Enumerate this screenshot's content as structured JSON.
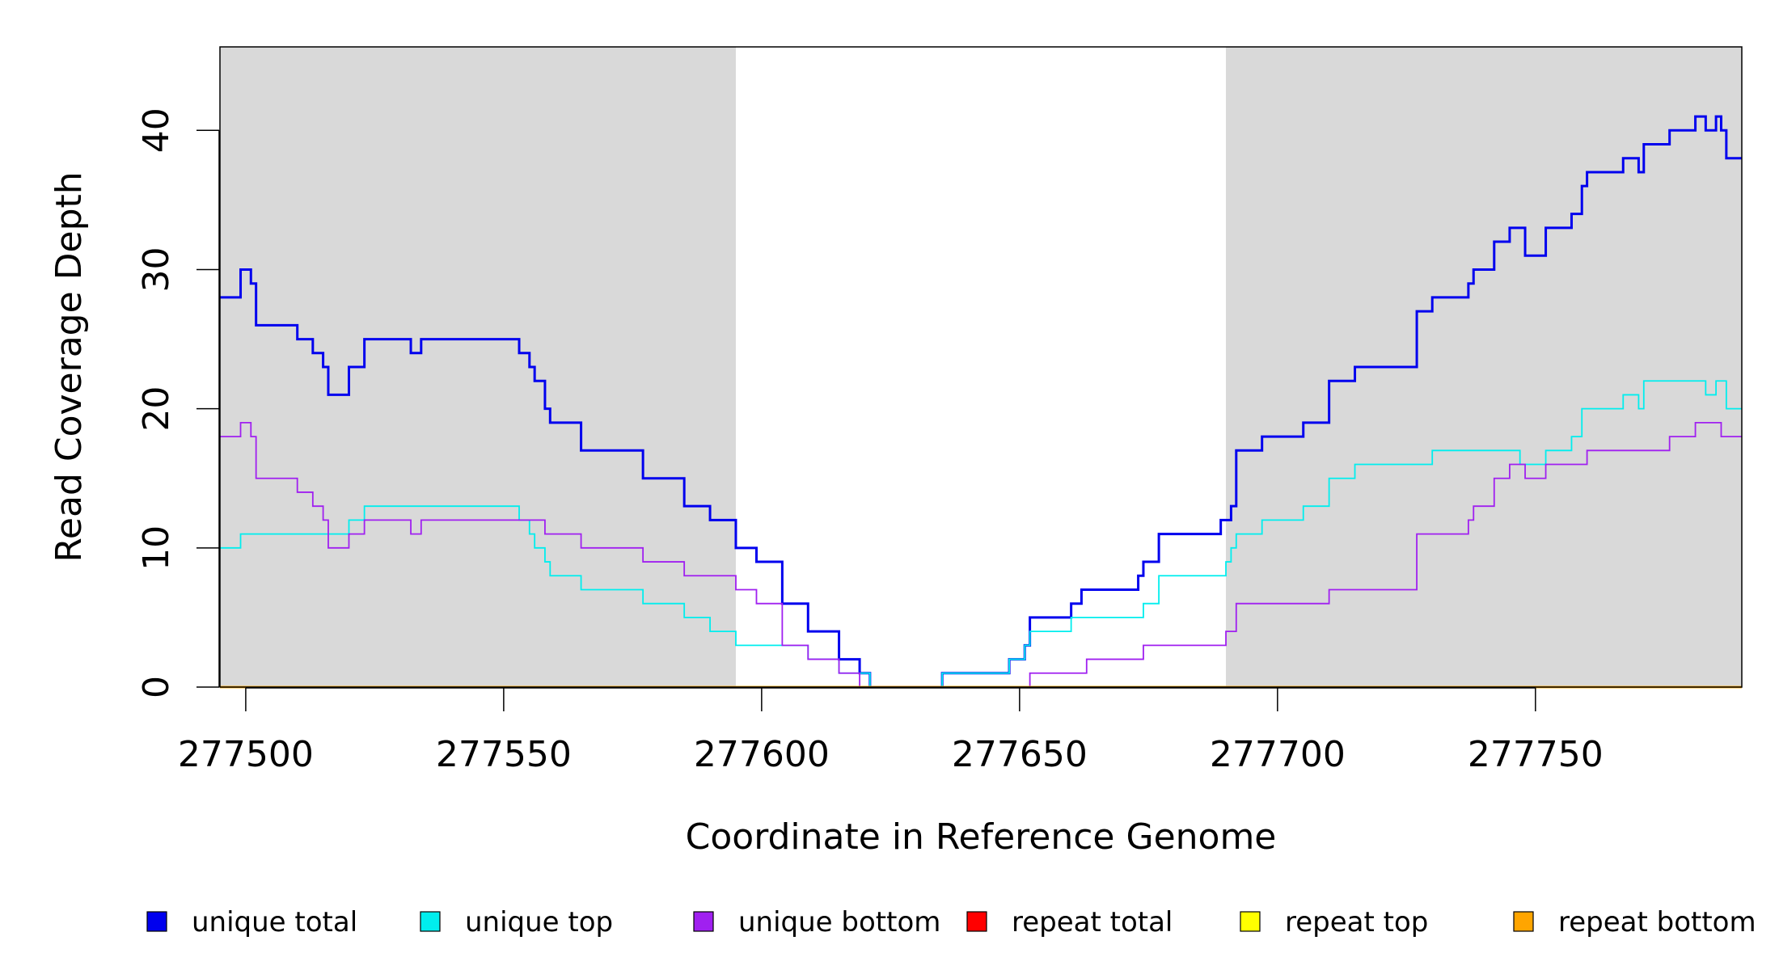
{
  "chart_data": {
    "type": "line",
    "xlabel": "Coordinate in Reference Genome",
    "ylabel": "Read Coverage Depth",
    "xlim": [
      277495,
      277790
    ],
    "ylim": [
      0,
      46
    ],
    "x_ticks": [
      277500,
      277550,
      277600,
      277650,
      277700,
      277750
    ],
    "y_ticks": [
      0,
      10,
      20,
      30,
      40
    ],
    "x_tick_labels": [
      "277500",
      "277550",
      "277600",
      "277650",
      "277700",
      "277750"
    ],
    "y_tick_labels": [
      "0",
      "10",
      "20",
      "30",
      "40"
    ],
    "grid": false,
    "legend_position": "bottom",
    "shaded_regions": [
      {
        "x0": 277495,
        "x1": 277595,
        "color": "#d9d9d9"
      },
      {
        "x0": 277690,
        "x1": 277790,
        "color": "#d9d9d9"
      }
    ],
    "series": [
      {
        "name": "unique total",
        "color": "#0000ee",
        "points": [
          [
            277495,
            28
          ],
          [
            277499,
            30
          ],
          [
            277501,
            29
          ],
          [
            277502,
            26
          ],
          [
            277505,
            26
          ],
          [
            277510,
            25
          ],
          [
            277513,
            24
          ],
          [
            277515,
            23
          ],
          [
            277516,
            21
          ],
          [
            277520,
            23
          ],
          [
            277523,
            25
          ],
          [
            277532,
            24
          ],
          [
            277534,
            25
          ],
          [
            277553,
            24
          ],
          [
            277555,
            23
          ],
          [
            277556,
            22
          ],
          [
            277558,
            20
          ],
          [
            277559,
            19
          ],
          [
            277565,
            17
          ],
          [
            277577,
            15
          ],
          [
            277585,
            13
          ],
          [
            277590,
            12
          ],
          [
            277595,
            10
          ],
          [
            277599,
            9
          ],
          [
            277604,
            6
          ],
          [
            277609,
            4
          ],
          [
            277615,
            2
          ],
          [
            277619,
            1
          ],
          [
            277621,
            0
          ],
          [
            277635,
            1
          ],
          [
            277648,
            2
          ],
          [
            277651,
            3
          ],
          [
            277652,
            5
          ],
          [
            277660,
            6
          ],
          [
            277662,
            7
          ],
          [
            277673,
            8
          ],
          [
            277674,
            9
          ],
          [
            277677,
            11
          ],
          [
            277689,
            12
          ],
          [
            277691,
            13
          ],
          [
            277692,
            17
          ],
          [
            277697,
            18
          ],
          [
            277705,
            19
          ],
          [
            277710,
            22
          ],
          [
            277715,
            23
          ],
          [
            277727,
            27
          ],
          [
            277730,
            28
          ],
          [
            277737,
            29
          ],
          [
            277738,
            30
          ],
          [
            277742,
            32
          ],
          [
            277745,
            33
          ],
          [
            277748,
            31
          ],
          [
            277752,
            33
          ],
          [
            277757,
            34
          ],
          [
            277759,
            36
          ],
          [
            277760,
            37
          ],
          [
            277767,
            38
          ],
          [
            277770,
            37
          ],
          [
            277771,
            39
          ],
          [
            277776,
            40
          ],
          [
            277781,
            41
          ],
          [
            277783,
            40
          ],
          [
            277785,
            41
          ],
          [
            277786,
            40
          ],
          [
            277787,
            38
          ],
          [
            277790,
            38
          ]
        ]
      },
      {
        "name": "unique top",
        "color": "#00eeee",
        "points": [
          [
            277495,
            10
          ],
          [
            277499,
            11
          ],
          [
            277520,
            12
          ],
          [
            277523,
            13
          ],
          [
            277553,
            12
          ],
          [
            277555,
            11
          ],
          [
            277556,
            10
          ],
          [
            277558,
            9
          ],
          [
            277559,
            8
          ],
          [
            277565,
            7
          ],
          [
            277577,
            6
          ],
          [
            277585,
            5
          ],
          [
            277590,
            4
          ],
          [
            277595,
            3
          ],
          [
            277604,
            3
          ],
          [
            277609,
            2
          ],
          [
            277615,
            1
          ],
          [
            277619,
            1
          ],
          [
            277621,
            0
          ],
          [
            277635,
            1
          ],
          [
            277648,
            2
          ],
          [
            277651,
            3
          ],
          [
            277652,
            4
          ],
          [
            277660,
            5
          ],
          [
            277674,
            6
          ],
          [
            277677,
            8
          ],
          [
            277690,
            9
          ],
          [
            277691,
            10
          ],
          [
            277692,
            11
          ],
          [
            277697,
            12
          ],
          [
            277705,
            13
          ],
          [
            277710,
            15
          ],
          [
            277715,
            16
          ],
          [
            277730,
            17
          ],
          [
            277747,
            16
          ],
          [
            277752,
            17
          ],
          [
            277757,
            18
          ],
          [
            277759,
            20
          ],
          [
            277767,
            21
          ],
          [
            277770,
            20
          ],
          [
            277771,
            22
          ],
          [
            277783,
            21
          ],
          [
            277785,
            22
          ],
          [
            277787,
            20
          ],
          [
            277790,
            20
          ]
        ]
      },
      {
        "name": "unique bottom",
        "color": "#a020f0",
        "points": [
          [
            277495,
            18
          ],
          [
            277499,
            19
          ],
          [
            277501,
            18
          ],
          [
            277502,
            15
          ],
          [
            277510,
            14
          ],
          [
            277513,
            13
          ],
          [
            277515,
            12
          ],
          [
            277516,
            10
          ],
          [
            277520,
            11
          ],
          [
            277523,
            12
          ],
          [
            277532,
            11
          ],
          [
            277534,
            12
          ],
          [
            277558,
            11
          ],
          [
            277565,
            10
          ],
          [
            277577,
            9
          ],
          [
            277585,
            8
          ],
          [
            277595,
            7
          ],
          [
            277599,
            6
          ],
          [
            277604,
            3
          ],
          [
            277609,
            2
          ],
          [
            277615,
            1
          ],
          [
            277619,
            0
          ],
          [
            277652,
            1
          ],
          [
            277663,
            2
          ],
          [
            277674,
            3
          ],
          [
            277690,
            4
          ],
          [
            277692,
            6
          ],
          [
            277710,
            7
          ],
          [
            277727,
            11
          ],
          [
            277737,
            12
          ],
          [
            277738,
            13
          ],
          [
            277742,
            15
          ],
          [
            277745,
            16
          ],
          [
            277748,
            15
          ],
          [
            277752,
            16
          ],
          [
            277760,
            17
          ],
          [
            277776,
            18
          ],
          [
            277781,
            19
          ],
          [
            277786,
            18
          ],
          [
            277790,
            18
          ]
        ]
      },
      {
        "name": "repeat total",
        "color": "#ff0000",
        "points": [
          [
            277495,
            0
          ],
          [
            277790,
            0
          ]
        ]
      },
      {
        "name": "repeat top",
        "color": "#ffff00",
        "points": [
          [
            277495,
            0
          ],
          [
            277790,
            0
          ]
        ]
      },
      {
        "name": "repeat bottom",
        "color": "#ffa500",
        "points": [
          [
            277495,
            0
          ],
          [
            277790,
            0
          ]
        ]
      }
    ]
  }
}
